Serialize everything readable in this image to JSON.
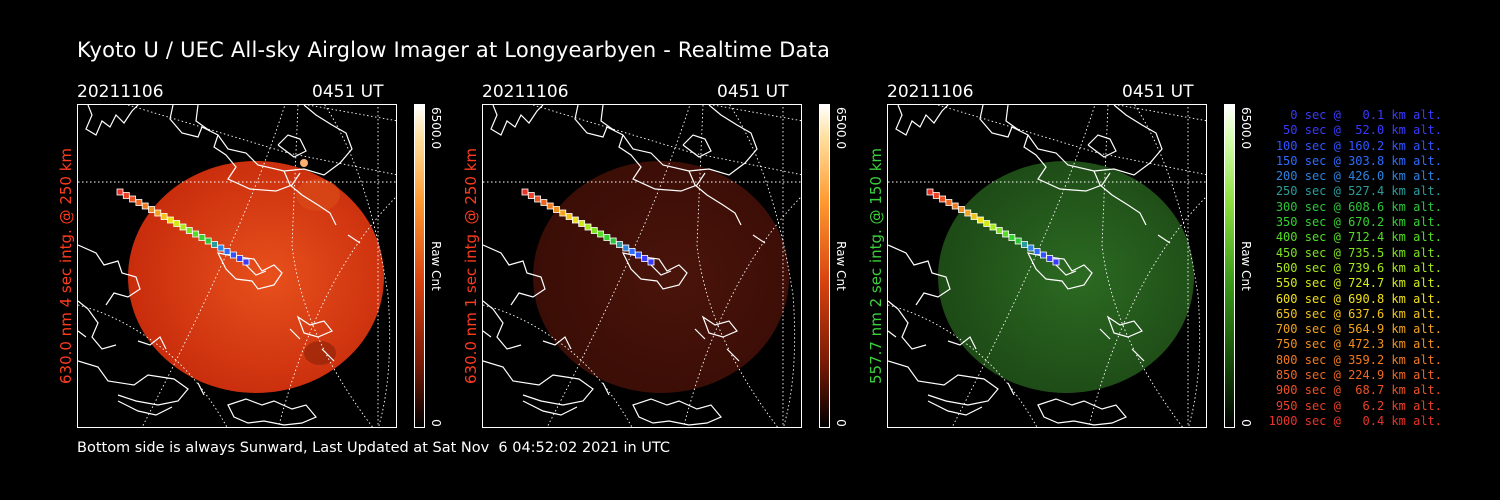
{
  "title": "Kyoto U / UEC All-sky Airglow Imager at Longyearbyen - Realtime Data",
  "panels": [
    {
      "date": "20211106",
      "time": "0451 UT",
      "side_label": "630.0 nm 4 sec intg. @ 250 km",
      "side_color": "#ff3b1f",
      "cbar_max": "6500.0",
      "cbar_min": "0",
      "cbar_unit": "Raw Cnt",
      "disk_color": "#c82c0c",
      "brightness": "high"
    },
    {
      "date": "20211106",
      "time": "0451 UT",
      "side_label": "630.0 nm 1 sec intg. @ 250 km",
      "side_color": "#ff3b1f",
      "cbar_max": "6500.0",
      "cbar_min": "0",
      "cbar_unit": "Raw Cnt",
      "disk_color": "#3a0d06",
      "brightness": "low"
    },
    {
      "date": "20211106",
      "time": "0451 UT",
      "side_label": "557.7 nm 2 sec intg. @ 150 km",
      "side_color": "#3ccf3c",
      "cbar_max": "6500.0",
      "cbar_min": "0",
      "cbar_unit": "Raw Cnt",
      "disk_color": "#1d4a16",
      "brightness": "mid"
    }
  ],
  "legend": [
    {
      "text": "0 sec @   0.1 km alt.",
      "color": "#3a3aff"
    },
    {
      "text": "50 sec @  52.0 km alt.",
      "color": "#3a3aff"
    },
    {
      "text": "100 sec @ 160.2 km alt.",
      "color": "#2f55ff"
    },
    {
      "text": "150 sec @ 303.8 km alt.",
      "color": "#2f6bff"
    },
    {
      "text": "200 sec @ 426.0 km alt.",
      "color": "#2c82e0"
    },
    {
      "text": "250 sec @ 527.4 km alt.",
      "color": "#2a9c9c"
    },
    {
      "text": "300 sec @ 608.6 km alt.",
      "color": "#2ec43a"
    },
    {
      "text": "350 sec @ 670.2 km alt.",
      "color": "#34d12e"
    },
    {
      "text": "400 sec @ 712.4 km alt.",
      "color": "#55dd25"
    },
    {
      "text": "450 sec @ 735.5 km alt.",
      "color": "#7ce31e"
    },
    {
      "text": "500 sec @ 739.6 km alt.",
      "color": "#a8e81a"
    },
    {
      "text": "550 sec @ 724.7 km alt.",
      "color": "#d2ea18"
    },
    {
      "text": "600 sec @ 690.8 km alt.",
      "color": "#f0e018"
    },
    {
      "text": "650 sec @ 637.6 km alt.",
      "color": "#f3c21a"
    },
    {
      "text": "700 sec @ 564.9 km alt.",
      "color": "#f2a41c"
    },
    {
      "text": "750 sec @ 472.3 km alt.",
      "color": "#f2901e"
    },
    {
      "text": "800 sec @ 359.2 km alt.",
      "color": "#f07a20"
    },
    {
      "text": "850 sec @ 224.9 km alt.",
      "color": "#ee6622"
    },
    {
      "text": "900 sec @  68.7 km alt.",
      "color": "#ec5224"
    },
    {
      "text": "950 sec @   6.2 km alt.",
      "color": "#ea4126"
    },
    {
      "text": "1000 sec @   0.4 km alt.",
      "color": "#e83428"
    }
  ],
  "footer": "Bottom side is always Sunward, Last Updated at Sat Nov  6 04:52:02 2021 in UTC"
}
